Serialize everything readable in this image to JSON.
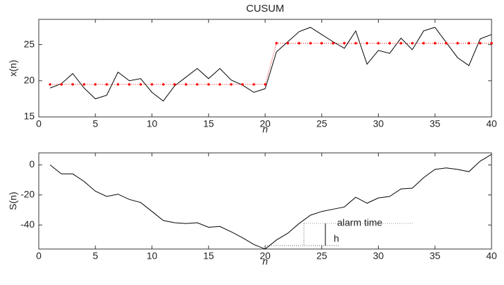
{
  "chart_data": [
    {
      "type": "line",
      "title": "CUSUM",
      "xlabel": "n",
      "ylabel": "x(n)",
      "x": [
        1,
        2,
        3,
        4,
        5,
        6,
        7,
        8,
        9,
        10,
        11,
        12,
        13,
        14,
        15,
        16,
        17,
        18,
        19,
        20,
        21,
        22,
        23,
        24,
        25,
        26,
        27,
        28,
        29,
        30,
        31,
        32,
        33,
        34,
        35,
        36,
        37,
        38,
        39,
        40
      ],
      "series": [
        {
          "color": "#000000",
          "style": "solid",
          "values": [
            19.0,
            19.6,
            21.0,
            19.0,
            17.5,
            18.0,
            21.2,
            20.0,
            20.3,
            18.4,
            17.2,
            19.3,
            20.5,
            21.7,
            20.3,
            21.7,
            20.1,
            19.4,
            18.4,
            18.9,
            24.0,
            25.4,
            26.8,
            27.4,
            26.4,
            25.4,
            24.5,
            26.9,
            22.3,
            24.2,
            23.8,
            25.9,
            24.3,
            26.9,
            27.4,
            25.3,
            23.2,
            22.1,
            25.8,
            26.4
          ]
        },
        {
          "color": "#ff0000",
          "style": "dotted-markers",
          "values": [
            19.5,
            19.5,
            19.5,
            19.5,
            19.5,
            19.5,
            19.5,
            19.5,
            19.5,
            19.5,
            19.5,
            19.5,
            19.5,
            19.5,
            19.5,
            19.5,
            19.5,
            19.5,
            19.5,
            19.5,
            25.2,
            25.2,
            25.2,
            25.2,
            25.2,
            25.2,
            25.2,
            25.2,
            25.2,
            25.2,
            25.2,
            25.2,
            25.2,
            25.2,
            25.2,
            25.2,
            25.2,
            25.2,
            25.2,
            25.2
          ]
        }
      ],
      "xlim": [
        0,
        40
      ],
      "ylim": [
        15,
        28.5
      ],
      "xticks": [
        0,
        5,
        10,
        15,
        20,
        25,
        30,
        35,
        40
      ],
      "yticks": [
        15,
        20,
        25
      ]
    },
    {
      "type": "line",
      "xlabel": "n",
      "ylabel": "S(n)",
      "x": [
        1,
        2,
        3,
        4,
        5,
        6,
        7,
        8,
        9,
        10,
        11,
        12,
        13,
        14,
        15,
        16,
        17,
        18,
        19,
        20,
        21,
        22,
        23,
        24,
        25,
        26,
        27,
        28,
        29,
        30,
        31,
        32,
        33,
        34,
        35,
        36,
        37,
        38,
        39,
        40
      ],
      "series": [
        {
          "color": "#000000",
          "style": "solid",
          "values": [
            0,
            -6,
            -6,
            -11,
            -17.5,
            -21,
            -19.5,
            -23,
            -25,
            -31,
            -37,
            -38.5,
            -39,
            -38.5,
            -41.5,
            -41,
            -44.5,
            -48.5,
            -53,
            -56,
            -50,
            -45.5,
            -39,
            -33.5,
            -31,
            -29.5,
            -28,
            -21.5,
            -25.5,
            -22,
            -21,
            -16,
            -15.5,
            -8.5,
            -3,
            -2,
            -3,
            -4.5,
            2.5,
            7
          ]
        }
      ],
      "xlim": [
        0,
        40
      ],
      "ylim": [
        -56,
        8
      ],
      "xticks": [
        0,
        5,
        10,
        15,
        20,
        25,
        30,
        35,
        40
      ],
      "yticks": [
        -40,
        -20,
        0
      ],
      "annotations": [
        "alarm time",
        "h"
      ]
    }
  ]
}
